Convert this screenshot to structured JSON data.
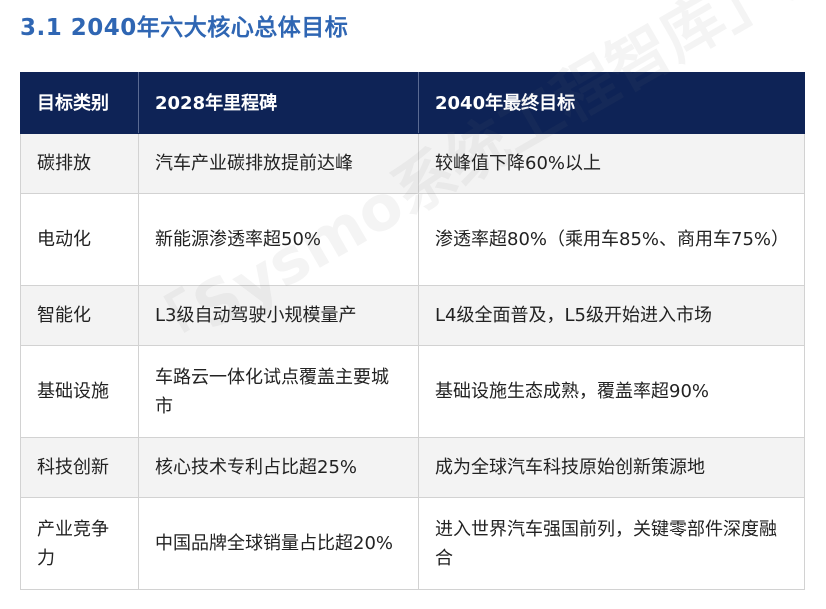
{
  "heading": "3.1 2040年六大核心总体目标",
  "table": {
    "headers": [
      "目标类别",
      "2028年里程碑",
      "2040年最终目标"
    ],
    "rows": [
      {
        "category": "碳排放",
        "milestone_2028": "汽车产业碳排放提前达峰",
        "goal_2040": "较峰值下降60%以上",
        "height": 60
      },
      {
        "category": "电动化",
        "milestone_2028": "新能源渗透率超50%",
        "goal_2040": "渗透率超80%（乘用车85%、商用车75%）",
        "height": 92
      },
      {
        "category": "智能化",
        "milestone_2028": "L3级自动驾驶小规模量产",
        "goal_2040": "L4级全面普及，L5级开始进入市场",
        "height": 60
      },
      {
        "category": "基础设施",
        "milestone_2028": "车路云一体化试点覆盖主要城市",
        "goal_2040": "基础设施生态成熟，覆盖率超90%",
        "height": 92
      },
      {
        "category": "科技创新",
        "milestone_2028": "核心技术专利占比超25%",
        "goal_2040": "成为全球汽车科技原始创新策源地",
        "height": 60
      },
      {
        "category": "产业竞争力",
        "milestone_2028": "中国品牌全球销量占比超20%",
        "goal_2040": "进入世界汽车强国前列，关键零部件深度融合",
        "height": 92
      }
    ]
  },
  "watermark": "「Sysmo系统工程智库」深度解析"
}
